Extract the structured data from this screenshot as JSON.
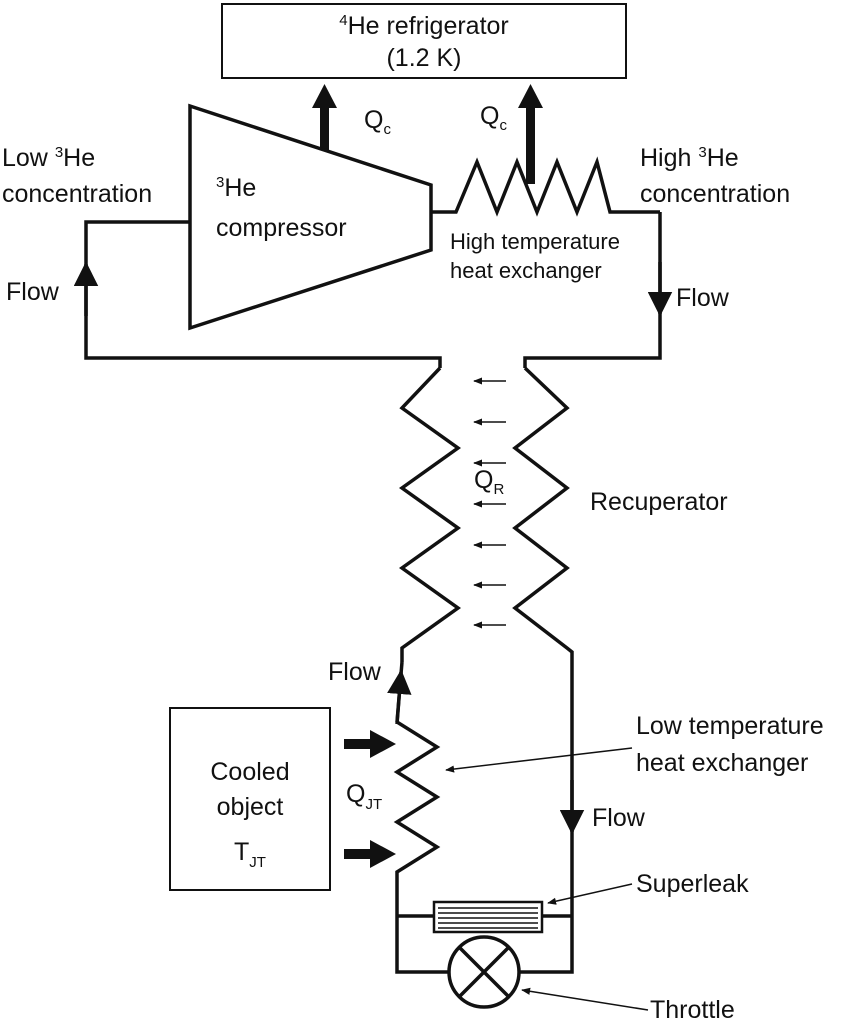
{
  "labels": {
    "refrigerator_line1_sup": "4",
    "refrigerator_line1": "He refrigerator",
    "refrigerator_line2": "(1.2 K)",
    "qc_main": "Q",
    "qc_sub": "c",
    "low_conc_word": "Low ",
    "low_conc_sup": "3",
    "low_conc_he": "He",
    "low_conc_line2": "concentration",
    "high_conc_word": "High ",
    "high_conc_sup": "3",
    "high_conc_he": "He",
    "high_conc_line2": "concentration",
    "compressor_sup": "3",
    "compressor_line1": "He",
    "compressor_line2": "compressor",
    "hthx_line1": "High temperature",
    "hthx_line2": "heat  exchanger",
    "flow": "Flow",
    "qr_main": "Q",
    "qr_sub": "R",
    "recuperator": "Recuperator",
    "lthx_line1": "Low temperature",
    "lthx_line2": "heat exchanger",
    "cooled_line1": "Cooled",
    "cooled_line2": "object",
    "tjt_main": "T",
    "tjt_sub": "JT",
    "qjt_main": "Q",
    "qjt_sub": "JT",
    "superleak": "Superleak",
    "throttle": "Throttle"
  },
  "colors": {
    "line": "#111111",
    "background": "#ffffff"
  }
}
